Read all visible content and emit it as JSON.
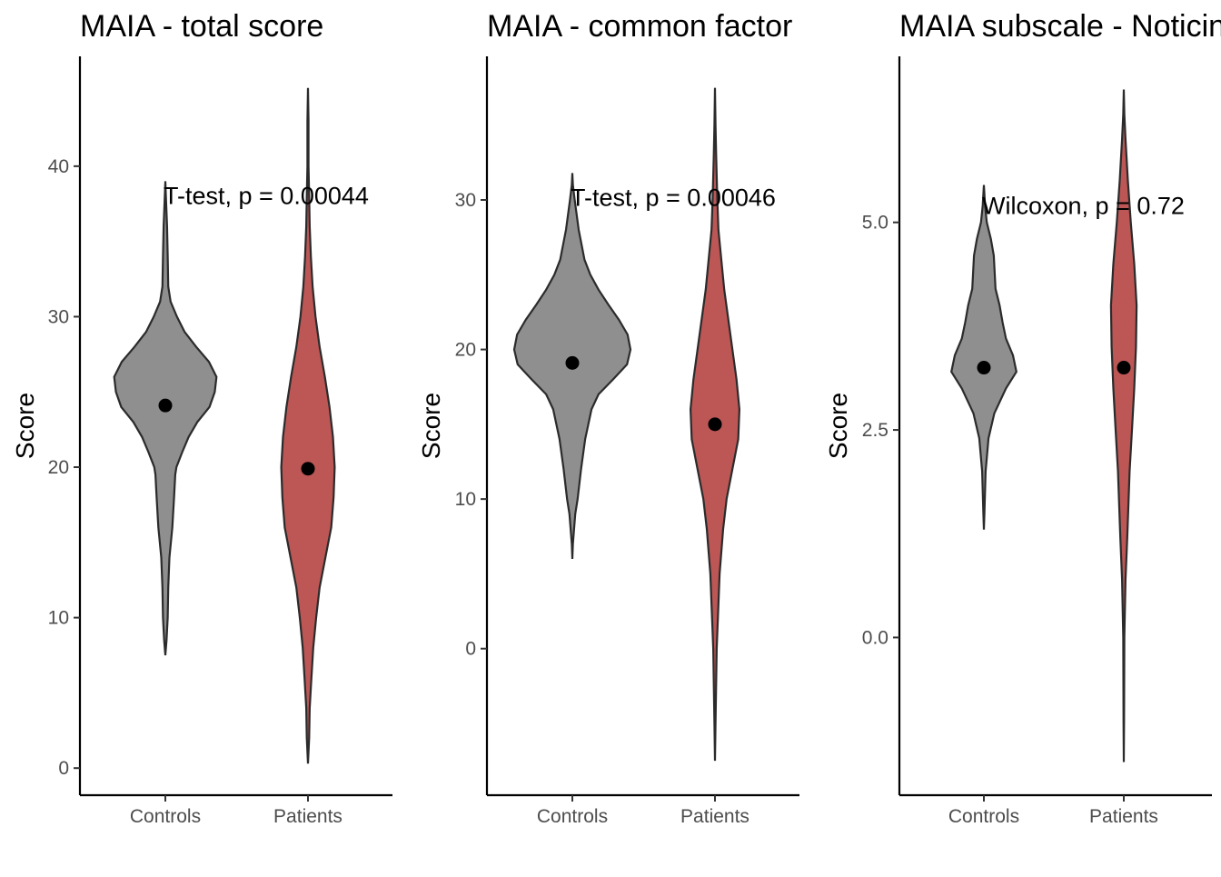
{
  "chart_data": [
    {
      "type": "violin",
      "title": "MAIA - total score",
      "ylabel": "Score",
      "xlabel": "",
      "categories": [
        "Controls",
        "Patients"
      ],
      "ylim": [
        -1.8,
        47.3
      ],
      "yticks": [
        0,
        10,
        20,
        30,
        40
      ],
      "ytick_labels": [
        "0",
        "10",
        "20",
        "30",
        "40"
      ],
      "annotation": {
        "text": "T-test, p = 0.00044",
        "y": 37.5
      },
      "series": [
        {
          "name": "Controls",
          "color": "#8f8f8f",
          "mean": 24.1,
          "profile": [
            [
              7.5,
              0.0
            ],
            [
              8.5,
              0.02
            ],
            [
              10,
              0.04
            ],
            [
              12,
              0.05
            ],
            [
              14,
              0.07
            ],
            [
              16,
              0.12
            ],
            [
              18,
              0.15
            ],
            [
              19.5,
              0.17
            ],
            [
              20,
              0.19
            ],
            [
              21,
              0.29
            ],
            [
              22,
              0.4
            ],
            [
              23,
              0.55
            ],
            [
              24,
              0.76
            ],
            [
              25,
              0.85
            ],
            [
              26,
              0.88
            ],
            [
              27,
              0.75
            ],
            [
              28,
              0.53
            ],
            [
              29,
              0.33
            ],
            [
              30,
              0.2
            ],
            [
              31,
              0.09
            ],
            [
              32,
              0.05
            ],
            [
              34,
              0.04
            ],
            [
              36,
              0.03
            ],
            [
              38,
              0.01
            ],
            [
              39,
              0.0
            ]
          ]
        },
        {
          "name": "Patients",
          "color": "#bc5756",
          "mean": 19.9,
          "profile": [
            [
              0.3,
              0.0
            ],
            [
              2,
              0.02
            ],
            [
              4,
              0.03
            ],
            [
              6,
              0.06
            ],
            [
              8,
              0.09
            ],
            [
              10,
              0.14
            ],
            [
              12,
              0.2
            ],
            [
              14,
              0.3
            ],
            [
              16,
              0.4
            ],
            [
              18,
              0.44
            ],
            [
              20,
              0.46
            ],
            [
              22,
              0.43
            ],
            [
              24,
              0.37
            ],
            [
              26,
              0.29
            ],
            [
              28,
              0.2
            ],
            [
              30,
              0.13
            ],
            [
              32,
              0.08
            ],
            [
              34,
              0.05
            ],
            [
              36,
              0.03
            ],
            [
              38,
              0.02
            ],
            [
              40,
              0.01
            ],
            [
              43,
              0.01
            ],
            [
              45.2,
              0.0
            ]
          ]
        }
      ]
    },
    {
      "type": "violin",
      "title": "MAIA - common factor",
      "ylabel": "Score",
      "xlabel": "",
      "categories": [
        "Controls",
        "Patients"
      ],
      "ylim": [
        -9.8,
        39.6
      ],
      "yticks": [
        0,
        10,
        20,
        30
      ],
      "ytick_labels": [
        "0",
        "10",
        "20",
        "30"
      ],
      "annotation": {
        "text": "T-test, p = 0.00046",
        "y": 29.6
      },
      "series": [
        {
          "name": "Controls",
          "color": "#8f8f8f",
          "mean": 19.1,
          "profile": [
            [
              6,
              0.0
            ],
            [
              7,
              0.01
            ],
            [
              8,
              0.03
            ],
            [
              9,
              0.05
            ],
            [
              10,
              0.09
            ],
            [
              12,
              0.15
            ],
            [
              14,
              0.22
            ],
            [
              16,
              0.33
            ],
            [
              17,
              0.45
            ],
            [
              18,
              0.7
            ],
            [
              19,
              0.94
            ],
            [
              20,
              1.0
            ],
            [
              21,
              0.95
            ],
            [
              22,
              0.8
            ],
            [
              23,
              0.62
            ],
            [
              24,
              0.45
            ],
            [
              25,
              0.31
            ],
            [
              26,
              0.21
            ],
            [
              28,
              0.11
            ],
            [
              30,
              0.04
            ],
            [
              31,
              0.01
            ],
            [
              31.8,
              0.0
            ]
          ]
        },
        {
          "name": "Patients",
          "color": "#bc5756",
          "mean": 15.0,
          "profile": [
            [
              -7.5,
              0.0
            ],
            [
              -5,
              0.01
            ],
            [
              0,
              0.03
            ],
            [
              5,
              0.08
            ],
            [
              8,
              0.14
            ],
            [
              10,
              0.2
            ],
            [
              12,
              0.3
            ],
            [
              14,
              0.4
            ],
            [
              16,
              0.42
            ],
            [
              18,
              0.37
            ],
            [
              20,
              0.3
            ],
            [
              22,
              0.23
            ],
            [
              24,
              0.16
            ],
            [
              26,
              0.11
            ],
            [
              28,
              0.06
            ],
            [
              30,
              0.04
            ],
            [
              33,
              0.02
            ],
            [
              35,
              0.01
            ],
            [
              37.5,
              0.0
            ]
          ]
        }
      ]
    },
    {
      "type": "violin",
      "title": "MAIA subscale - Noticing",
      "ylabel": "Score",
      "xlabel": "",
      "categories": [
        "Controls",
        "Patients"
      ],
      "ylim": [
        -1.9,
        7.0
      ],
      "yticks": [
        0.0,
        2.5,
        5.0
      ],
      "ytick_labels": [
        "0.0",
        "2.5",
        "5.0"
      ],
      "annotation": {
        "text": "Wilcoxon, p = 0.72",
        "y": 5.1
      },
      "series": [
        {
          "name": "Controls",
          "color": "#8f8f8f",
          "mean": 3.25,
          "profile": [
            [
              1.3,
              0.0
            ],
            [
              1.5,
              0.01
            ],
            [
              2.0,
              0.03
            ],
            [
              2.4,
              0.08
            ],
            [
              2.7,
              0.18
            ],
            [
              3.0,
              0.38
            ],
            [
              3.2,
              0.56
            ],
            [
              3.4,
              0.5
            ],
            [
              3.6,
              0.38
            ],
            [
              3.8,
              0.32
            ],
            [
              4.0,
              0.27
            ],
            [
              4.2,
              0.2
            ],
            [
              4.6,
              0.17
            ],
            [
              4.8,
              0.12
            ],
            [
              5.0,
              0.05
            ],
            [
              5.2,
              0.02
            ],
            [
              5.45,
              0.0
            ]
          ]
        },
        {
          "name": "Patients",
          "color": "#bc5756",
          "mean": 3.25,
          "profile": [
            [
              -1.5,
              0.0
            ],
            [
              -1.0,
              0.005
            ],
            [
              0.0,
              0.01
            ],
            [
              0.7,
              0.03
            ],
            [
              1.2,
              0.06
            ],
            [
              2.0,
              0.1
            ],
            [
              2.5,
              0.14
            ],
            [
              3.0,
              0.18
            ],
            [
              3.5,
              0.21
            ],
            [
              4.0,
              0.22
            ],
            [
              4.5,
              0.18
            ],
            [
              5.0,
              0.12
            ],
            [
              5.5,
              0.07
            ],
            [
              6.0,
              0.03
            ],
            [
              6.3,
              0.01
            ],
            [
              6.6,
              0.0
            ]
          ]
        }
      ]
    }
  ]
}
